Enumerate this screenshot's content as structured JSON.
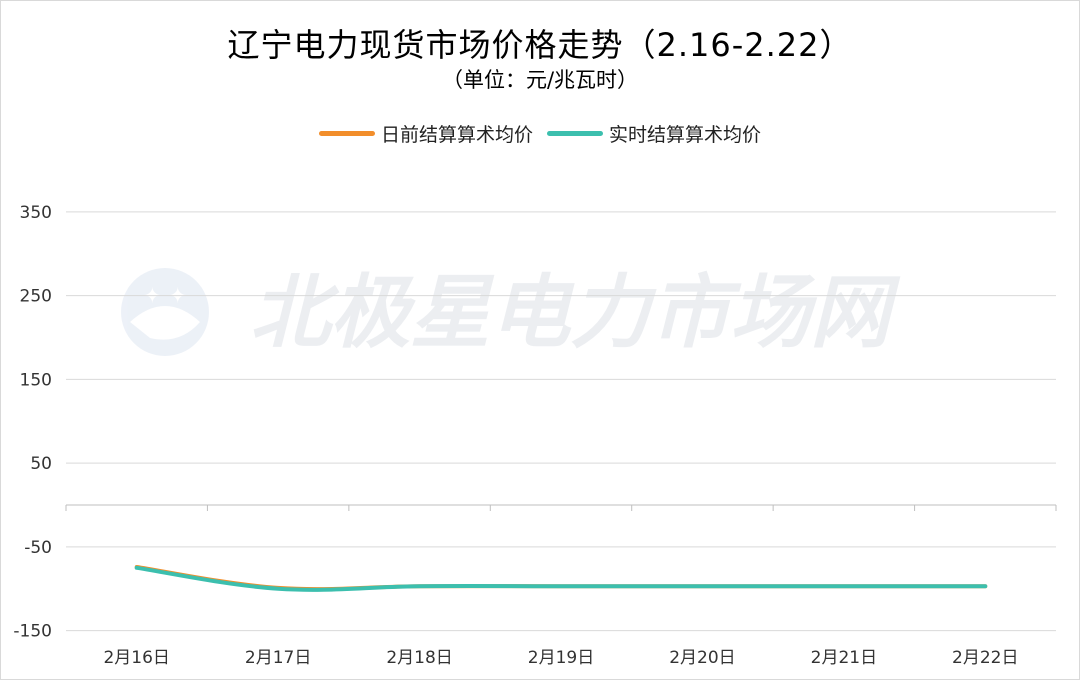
{
  "chart_data": {
    "type": "line",
    "title": "辽宁电力现货市场价格走势（2.16-2.22）",
    "subtitle": "（单位：元/兆瓦时）",
    "watermark": "北极星电力市场网",
    "categories": [
      "2月16日",
      "2月17日",
      "2月18日",
      "2月19日",
      "2月20日",
      "2月21日",
      "2月22日"
    ],
    "series": [
      {
        "name": "日前结算算术均价",
        "color": "#F28E2B",
        "values": [
          -74,
          -99,
          -97,
          -97,
          -97,
          -97,
          -97
        ]
      },
      {
        "name": "实时结算算术均价",
        "color": "#3CBFAE",
        "values": [
          -75,
          -100,
          -97,
          -97,
          -97,
          -97,
          -97
        ]
      }
    ],
    "yticks": [
      350,
      250,
      150,
      50,
      -50,
      -150
    ],
    "ylim": [
      -150,
      350
    ],
    "grid": true,
    "legend_position": "top"
  }
}
